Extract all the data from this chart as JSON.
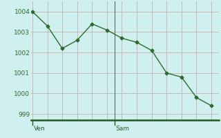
{
  "x_values": [
    0,
    1,
    2,
    3,
    4,
    5,
    6,
    7,
    8,
    9,
    10,
    11,
    12
  ],
  "y_values": [
    1004.0,
    1003.3,
    1002.2,
    1002.6,
    1003.4,
    1003.1,
    1002.7,
    1002.5,
    1002.1,
    1001.0,
    1000.8,
    999.8,
    999.4
  ],
  "line_color": "#2d6a2d",
  "marker": "D",
  "marker_size": 2.5,
  "background_color": "#cff0ee",
  "grid_color": "#c8b8b8",
  "axis_line_color": "#1e5c1e",
  "ylim": [
    998.7,
    1004.5
  ],
  "yticks": [
    999,
    1000,
    1001,
    1002,
    1003,
    1004
  ],
  "tick_label_color": "#2d6a2d",
  "day_label_color": "#2d5a2d",
  "separator_x": 5.5,
  "ven_tick_x": 0,
  "sam_tick_x": 5.5,
  "xlim": [
    -0.1,
    12.5
  ]
}
